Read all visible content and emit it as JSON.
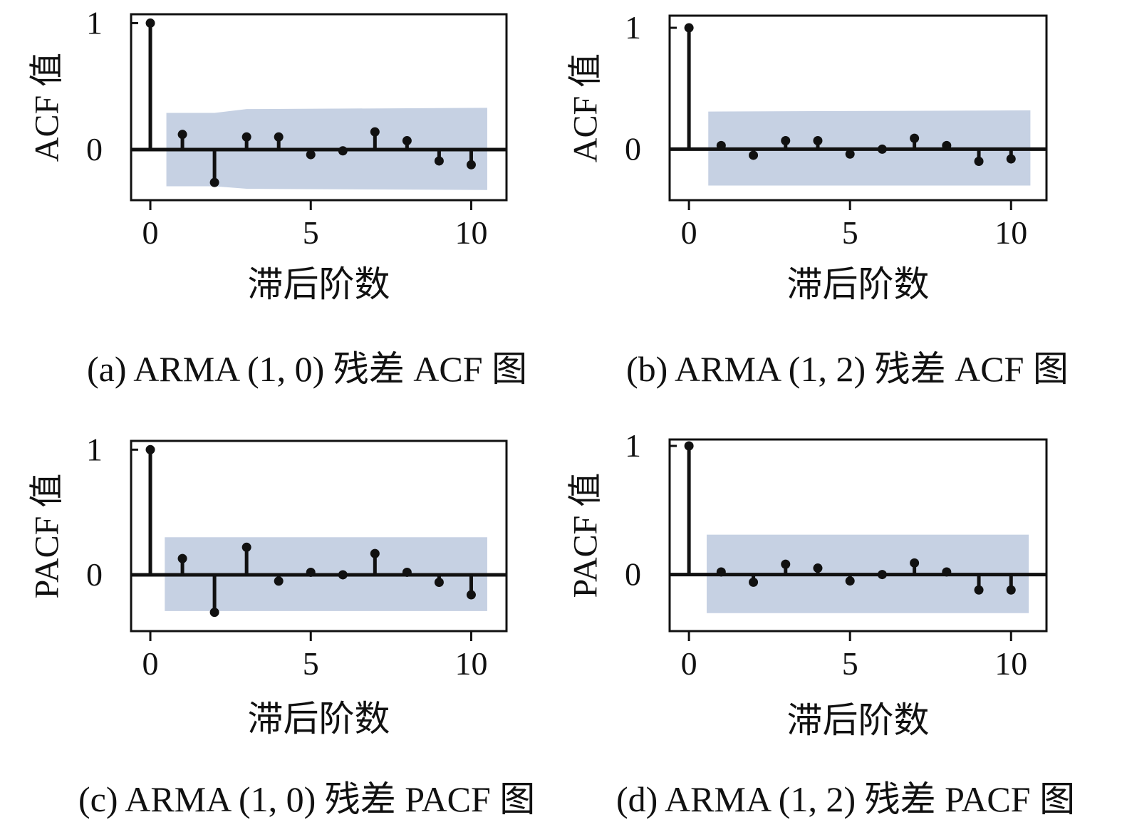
{
  "colors": {
    "band": "#c6d1e3",
    "stem": "#111111",
    "frame": "#111111"
  },
  "chart_data": [
    {
      "type": "stem",
      "caption": "(a) ARMA (1, 0) 残差 ACF 图",
      "ylabel": "ACF 值",
      "xlabel": "滞后阶数",
      "xlim": [
        -0.6,
        11.1
      ],
      "ylim": [
        -0.4,
        1.07
      ],
      "x_ticks": [
        0,
        5,
        10
      ],
      "x_tick_labels": [
        "0",
        "5",
        "10"
      ],
      "y_tick_labels": [
        {
          "value": 1,
          "label": "1"
        },
        {
          "value": 0,
          "label": "0"
        }
      ],
      "lags": [
        0,
        1,
        2,
        3,
        4,
        5,
        6,
        7,
        8,
        9,
        10
      ],
      "values": [
        1.0,
        0.12,
        -0.26,
        0.1,
        0.1,
        -0.04,
        -0.01,
        0.14,
        0.07,
        -0.09,
        -0.12
      ],
      "confidence_band": {
        "x": [
          0.5,
          2,
          3,
          10.5
        ],
        "upper": [
          0.29,
          0.29,
          0.32,
          0.33
        ],
        "lower": [
          -0.29,
          -0.29,
          -0.31,
          -0.32
        ]
      }
    },
    {
      "type": "stem",
      "caption": "(b) ARMA (1, 2) 残差 ACF 图",
      "ylabel": "ACF 值",
      "xlabel": "滞后阶数",
      "xlim": [
        -0.6,
        11.1
      ],
      "ylim": [
        -0.42,
        1.1
      ],
      "x_ticks": [
        0,
        5,
        10
      ],
      "x_tick_labels": [
        "0",
        "5",
        "10"
      ],
      "y_tick_labels": [
        {
          "value": 1,
          "label": "1"
        },
        {
          "value": 0,
          "label": "0"
        }
      ],
      "lags": [
        0,
        1,
        2,
        3,
        4,
        5,
        6,
        7,
        8,
        9,
        10
      ],
      "values": [
        1.0,
        0.03,
        -0.05,
        0.07,
        0.07,
        -0.04,
        0.0,
        0.09,
        0.03,
        -0.1,
        -0.08
      ],
      "confidence_band": {
        "x": [
          0.6,
          10.6
        ],
        "upper": [
          0.31,
          0.32
        ],
        "lower": [
          -0.3,
          -0.3
        ]
      }
    },
    {
      "type": "stem",
      "caption": "(c) ARMA (1, 0) 残差 PACF 图",
      "ylabel": "PACF 值",
      "xlabel": "滞后阶数",
      "xlim": [
        -0.6,
        11.1
      ],
      "ylim": [
        -0.45,
        1.07
      ],
      "x_ticks": [
        0,
        5,
        10
      ],
      "x_tick_labels": [
        "0",
        "5",
        "10"
      ],
      "y_tick_labels": [
        {
          "value": 1,
          "label": "1"
        },
        {
          "value": 0,
          "label": "0"
        }
      ],
      "lags": [
        0,
        1,
        2,
        3,
        4,
        5,
        6,
        7,
        8,
        9,
        10
      ],
      "values": [
        1.0,
        0.13,
        -0.3,
        0.22,
        -0.05,
        0.02,
        0.0,
        0.17,
        0.02,
        -0.06,
        -0.16
      ],
      "confidence_band": {
        "x": [
          0.45,
          10.5
        ],
        "upper": [
          0.3,
          0.3
        ],
        "lower": [
          -0.29,
          -0.29
        ]
      }
    },
    {
      "type": "stem",
      "caption": "(d) ARMA (1, 2) 残差 PACF 图",
      "ylabel": "PACF 值",
      "xlabel": "滞后阶数",
      "xlim": [
        -0.6,
        11.1
      ],
      "ylim": [
        -0.44,
        1.05
      ],
      "x_ticks": [
        0,
        5,
        10
      ],
      "x_tick_labels": [
        "0",
        "5",
        "10"
      ],
      "y_tick_labels": [
        {
          "value": 1,
          "label": "1"
        },
        {
          "value": 0,
          "label": "0"
        }
      ],
      "lags": [
        0,
        1,
        2,
        3,
        4,
        5,
        6,
        7,
        8,
        9,
        10
      ],
      "values": [
        1.0,
        0.02,
        -0.06,
        0.08,
        0.05,
        -0.05,
        0.0,
        0.09,
        0.02,
        -0.12,
        -0.12
      ],
      "confidence_band": {
        "x": [
          0.55,
          10.55
        ],
        "upper": [
          0.31,
          0.31
        ],
        "lower": [
          -0.3,
          -0.3
        ]
      }
    }
  ]
}
